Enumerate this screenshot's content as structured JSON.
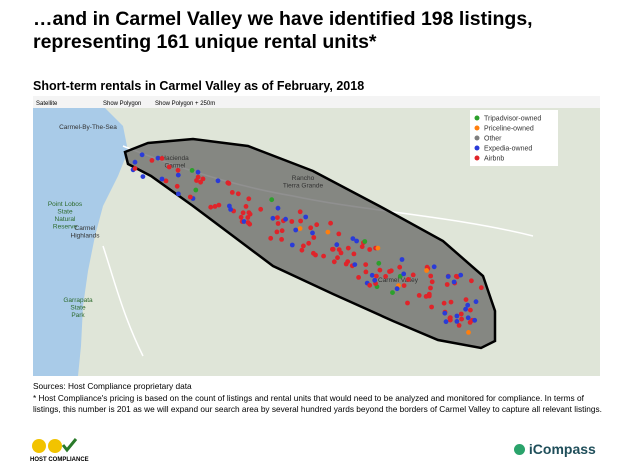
{
  "header": {
    "title_lines": [
      "…and in Carmel Valley we have identified 198 listings,",
      "representing 161 unique rental units*"
    ],
    "subtitle": "Short-term rentals in Carmel Valley as of February, 2018"
  },
  "map": {
    "controls": [
      "Satellite",
      "Show Polygon",
      "Show Polygon + 250m"
    ],
    "place_labels": [
      [
        "Carmel-By-The-Sea"
      ],
      [
        "Hacienda",
        "Carmel"
      ],
      [
        "Rancho",
        "Tierra Grande"
      ],
      [
        "Point Lobos",
        "State",
        "Natural",
        "Reserve"
      ],
      [
        "Carmel",
        "Highlands"
      ],
      [
        "Garrapata",
        "State",
        "Park"
      ],
      [
        "Carmel Valley"
      ]
    ],
    "legend": [
      {
        "label": "Tripadvisor-owned",
        "color": "#2ca02c"
      },
      {
        "label": "Priceline-owned",
        "color": "#ff7f0e"
      },
      {
        "label": "Other",
        "color": "#7f7f7f"
      },
      {
        "label": "Expedia-owned",
        "color": "#2a3bd8"
      },
      {
        "label": "Airbnb",
        "color": "#e0242a"
      }
    ]
  },
  "footer": {
    "sources": "Sources: Host Compliance proprietary data",
    "footnote": "* Host Compliance's pricing is based on the count of listings and rental units that would need to be analyzed and monitored for compliance. In terms of listings, this number is 201 as we will expand our search area by several hundred yards beyond the borders of Carmel Valley to capture all relevant listings.",
    "logos": [
      "HOST COMPLIANCE",
      "iCompass"
    ]
  }
}
